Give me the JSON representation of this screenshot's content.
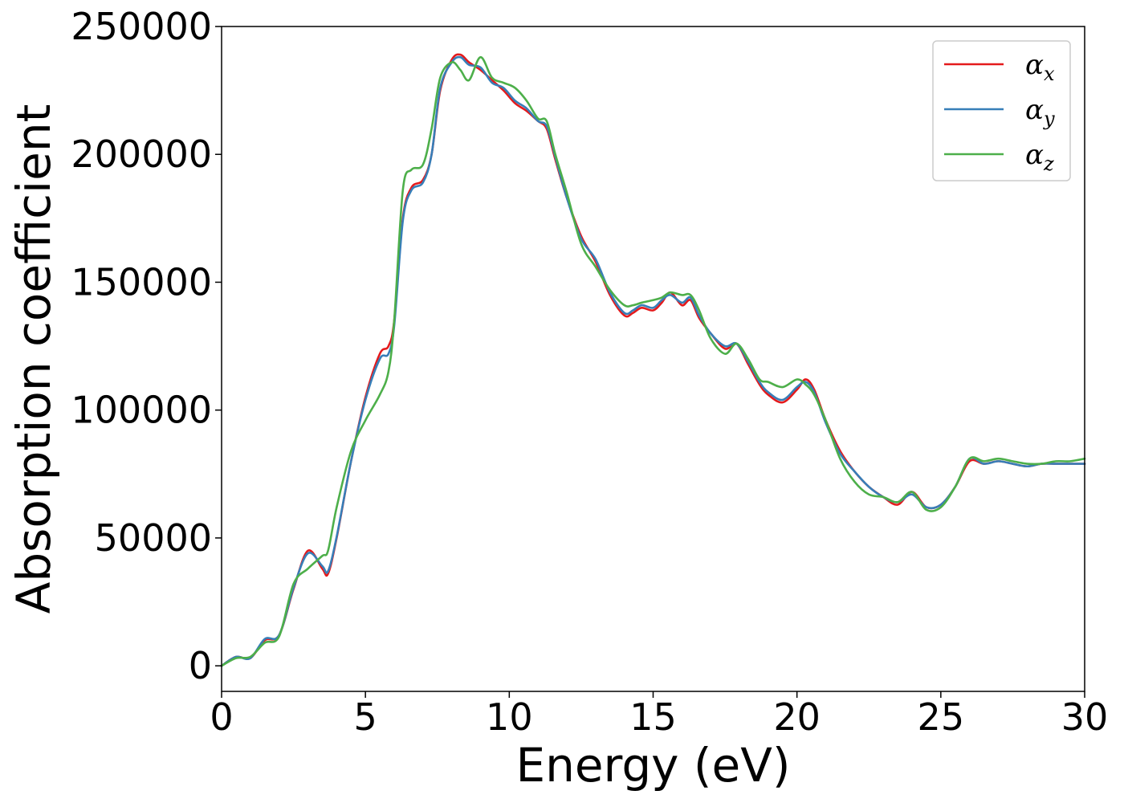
{
  "chart_data": {
    "type": "line",
    "title": "",
    "xlabel": "Energy (eV)",
    "ylabel": "Absorption coefficient",
    "xlim": [
      0,
      30
    ],
    "ylim": [
      -10000,
      250000
    ],
    "xticks": [
      0,
      5,
      10,
      15,
      20,
      25,
      30
    ],
    "yticks": [
      0,
      50000,
      100000,
      150000,
      200000,
      250000
    ],
    "xtick_labels": [
      "0",
      "5",
      "10",
      "15",
      "20",
      "25",
      "30"
    ],
    "ytick_labels": [
      "0",
      "50000",
      "100000",
      "150000",
      "200000",
      "250000"
    ],
    "grid": false,
    "legend_position": "top-right",
    "series": [
      {
        "name": "αx",
        "legend_base": "α",
        "legend_sub": "x",
        "color": "#e41a1c",
        "x": [
          0,
          0.5,
          1,
          1.5,
          2,
          2.5,
          3,
          3.5,
          3.7,
          4,
          4.5,
          5,
          5.5,
          5.8,
          6,
          6.3,
          6.6,
          7,
          7.3,
          7.6,
          8,
          8.3,
          8.6,
          9,
          9.4,
          9.8,
          10.2,
          10.6,
          11,
          11.3,
          11.6,
          12,
          12.5,
          13,
          13.5,
          14,
          14.3,
          14.6,
          15,
          15.3,
          15.6,
          16,
          16.3,
          16.6,
          17,
          17.5,
          17.9,
          18.3,
          18.7,
          19,
          19.5,
          20,
          20.3,
          20.6,
          21,
          21.5,
          22,
          22.5,
          23,
          23.5,
          24,
          24.5,
          25,
          25.5,
          26,
          26.5,
          27,
          27.5,
          28,
          28.5,
          29,
          29.5,
          30
        ],
        "y": [
          0,
          3500,
          3000,
          10000,
          12000,
          30000,
          45000,
          38000,
          36000,
          50000,
          80000,
          105000,
          122000,
          125000,
          135000,
          175000,
          187000,
          190000,
          200000,
          225000,
          237000,
          239000,
          236000,
          233000,
          229000,
          225000,
          220000,
          217000,
          213000,
          210000,
          198000,
          183000,
          168000,
          158000,
          145000,
          137000,
          138000,
          140000,
          139000,
          142000,
          146000,
          141000,
          143000,
          136000,
          130000,
          124000,
          126000,
          118000,
          110000,
          106000,
          103000,
          108000,
          112000,
          108000,
          96000,
          84000,
          76000,
          70000,
          66000,
          63000,
          68000,
          62000,
          63000,
          70000,
          80000,
          79000,
          80000,
          79000,
          78000,
          79000,
          79000,
          79000,
          79000
        ]
      },
      {
        "name": "αy",
        "legend_base": "α",
        "legend_sub": "y",
        "color": "#377eb8",
        "x": [
          0,
          0.5,
          1,
          1.5,
          2,
          2.5,
          3,
          3.5,
          3.7,
          4,
          4.5,
          5,
          5.5,
          5.8,
          6,
          6.3,
          6.6,
          7,
          7.3,
          7.6,
          8,
          8.3,
          8.6,
          9,
          9.4,
          9.8,
          10.2,
          10.6,
          11,
          11.3,
          11.6,
          12,
          12.5,
          13,
          13.5,
          14,
          14.3,
          14.6,
          15,
          15.3,
          15.6,
          16,
          16.3,
          16.6,
          17,
          17.5,
          17.9,
          18.3,
          18.7,
          19,
          19.5,
          20,
          20.3,
          20.6,
          21,
          21.5,
          22,
          22.5,
          23,
          23.5,
          24,
          24.5,
          25,
          25.5,
          26,
          26.5,
          27,
          27.5,
          28,
          28.5,
          29,
          29.5,
          30
        ],
        "y": [
          0,
          3500,
          3000,
          10500,
          12000,
          30500,
          44000,
          39000,
          37000,
          50500,
          80000,
          104000,
          120000,
          122000,
          133000,
          174000,
          186000,
          189000,
          200000,
          226000,
          236000,
          238000,
          235000,
          234000,
          228000,
          226000,
          221000,
          218000,
          213000,
          211000,
          199000,
          183000,
          167000,
          159000,
          146000,
          138000,
          139000,
          141000,
          140000,
          143000,
          145000,
          142000,
          144000,
          137000,
          130000,
          125000,
          126000,
          119000,
          111000,
          107000,
          104000,
          109000,
          111000,
          107000,
          95000,
          83000,
          76000,
          70000,
          66000,
          64000,
          67000,
          62000,
          63000,
          70000,
          81000,
          79000,
          80000,
          79000,
          78000,
          79000,
          79000,
          79000,
          79000
        ]
      },
      {
        "name": "αz",
        "legend_base": "α",
        "legend_sub": "z",
        "color": "#4daf4a",
        "x": [
          0,
          0.5,
          1,
          1.5,
          2,
          2.5,
          3,
          3.5,
          3.7,
          4,
          4.5,
          5,
          5.5,
          5.8,
          6,
          6.3,
          6.6,
          7,
          7.3,
          7.6,
          8,
          8.3,
          8.6,
          9,
          9.4,
          9.8,
          10.2,
          10.6,
          11,
          11.3,
          11.6,
          12,
          12.5,
          13,
          13.5,
          14,
          14.3,
          14.6,
          15,
          15.3,
          15.6,
          16,
          16.3,
          16.6,
          17,
          17.5,
          17.9,
          18.3,
          18.7,
          19,
          19.5,
          20,
          20.3,
          20.6,
          21,
          21.5,
          22,
          22.5,
          23,
          23.5,
          24,
          24.5,
          25,
          25.5,
          26,
          26.5,
          27,
          27.5,
          28,
          28.5,
          29,
          29.5,
          30
        ],
        "y": [
          0,
          3000,
          3500,
          9000,
          11500,
          32000,
          38000,
          43000,
          45000,
          62000,
          84000,
          96000,
          106000,
          115000,
          135000,
          186000,
          194000,
          196000,
          210000,
          230000,
          236000,
          233000,
          229000,
          238000,
          230000,
          228000,
          226000,
          221000,
          214000,
          213000,
          200000,
          185000,
          165000,
          156000,
          147000,
          141000,
          141000,
          142000,
          143000,
          144000,
          146000,
          145000,
          145000,
          139000,
          128000,
          122000,
          126000,
          120000,
          112000,
          111000,
          109000,
          112000,
          110000,
          106000,
          96000,
          81000,
          72000,
          67000,
          66000,
          64000,
          68000,
          61000,
          62000,
          70000,
          81000,
          80000,
          81000,
          80000,
          79000,
          79000,
          80000,
          80000,
          81000
        ]
      }
    ]
  }
}
